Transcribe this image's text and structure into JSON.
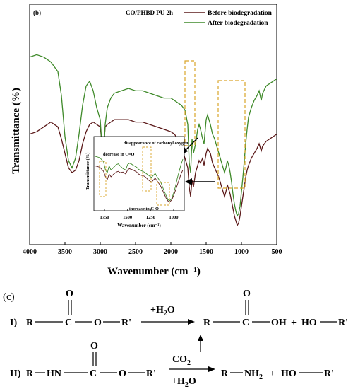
{
  "colors": {
    "before": "#5c1a1a",
    "after": "#3f8a2a",
    "highlight": "#d9a52a",
    "ink": "#000000"
  },
  "chart_data": {
    "type": "line",
    "panel_label": "(b)",
    "title": "CO/PHBD PU 2h",
    "xlabel": "Wavenumber (cm⁻¹)",
    "ylabel": "Transmittance (%)",
    "xlim": [
      4000,
      500
    ],
    "x_reversed": true,
    "x_ticks": [
      "4000",
      "3500",
      "3000",
      "2500",
      "2000",
      "1500",
      "1000",
      "500"
    ],
    "y_ticks_shown": false,
    "legend_placement": "top-right",
    "series": [
      {
        "name": "Before biodegradation",
        "x": [
          4000,
          3900,
          3800,
          3700,
          3600,
          3550,
          3500,
          3450,
          3400,
          3350,
          3300,
          3250,
          3200,
          3150,
          3100,
          3050,
          3000,
          2960,
          2930,
          2900,
          2850,
          2800,
          2700,
          2600,
          2500,
          2400,
          2300,
          2200,
          2100,
          2000,
          1950,
          1900,
          1850,
          1800,
          1760,
          1740,
          1720,
          1700,
          1680,
          1650,
          1620,
          1600,
          1580,
          1550,
          1530,
          1500,
          1480,
          1460,
          1440,
          1410,
          1380,
          1350,
          1320,
          1300,
          1280,
          1260,
          1240,
          1220,
          1200,
          1180,
          1160,
          1140,
          1120,
          1100,
          1080,
          1060,
          1040,
          1020,
          1000,
          980,
          960,
          940,
          920,
          900,
          860,
          820,
          780,
          750,
          720,
          700,
          650,
          600,
          550,
          500
        ],
        "y": [
          46,
          47,
          49,
          51,
          49,
          44,
          38,
          32,
          30,
          31,
          35,
          42,
          47,
          50,
          51,
          50,
          49,
          38,
          49,
          50,
          51,
          52,
          52,
          52,
          51,
          51,
          50,
          49,
          48,
          47,
          46,
          44,
          40,
          36,
          32,
          24,
          20,
          27,
          24,
          30,
          33,
          35,
          34,
          36,
          33,
          38,
          40,
          39,
          38,
          34,
          32,
          30,
          28,
          26,
          24,
          22,
          20,
          22,
          25,
          23,
          21,
          18,
          15,
          12,
          10,
          8,
          9,
          12,
          16,
          20,
          24,
          28,
          31,
          33,
          36,
          38,
          40,
          42,
          39,
          41,
          43,
          44,
          45,
          46
        ]
      },
      {
        "name": "After biodegradation",
        "x": [
          4000,
          3900,
          3800,
          3700,
          3600,
          3550,
          3500,
          3450,
          3400,
          3350,
          3300,
          3250,
          3200,
          3150,
          3100,
          3050,
          3000,
          2960,
          2930,
          2900,
          2850,
          2800,
          2700,
          2600,
          2500,
          2400,
          2300,
          2200,
          2100,
          2000,
          1950,
          1900,
          1850,
          1800,
          1760,
          1740,
          1720,
          1700,
          1680,
          1650,
          1620,
          1600,
          1580,
          1550,
          1530,
          1500,
          1480,
          1460,
          1440,
          1410,
          1380,
          1350,
          1320,
          1300,
          1280,
          1260,
          1240,
          1220,
          1200,
          1180,
          1160,
          1140,
          1120,
          1100,
          1080,
          1060,
          1040,
          1020,
          1000,
          980,
          960,
          940,
          920,
          900,
          860,
          820,
          780,
          750,
          720,
          700,
          650,
          600,
          550,
          500
        ],
        "y": [
          78,
          79,
          78,
          76,
          72,
          62,
          45,
          35,
          32,
          36,
          46,
          58,
          66,
          68,
          64,
          57,
          52,
          34,
          50,
          57,
          61,
          63,
          64,
          65,
          64,
          64,
          63,
          62,
          61,
          61,
          60,
          59,
          58,
          56,
          50,
          34,
          30,
          44,
          38,
          42,
          48,
          50,
          48,
          44,
          42,
          52,
          54,
          52,
          50,
          46,
          44,
          41,
          38,
          36,
          34,
          32,
          30,
          32,
          35,
          33,
          30,
          26,
          21,
          17,
          14,
          12,
          13,
          16,
          22,
          28,
          35,
          42,
          48,
          53,
          57,
          60,
          62,
          64,
          60,
          63,
          66,
          67,
          68,
          69
        ]
      }
    ],
    "inset": {
      "type": "line",
      "xlabel": "Wavenumber (cm⁻¹)",
      "ylabel": "Transmittance (%)",
      "xlim": [
        1850,
        900
      ],
      "x_ticks": [
        "1750",
        "1500",
        "1250",
        "1000"
      ],
      "annotations": [
        "disappearance of carbonyl oxygen",
        "decrease in C=O",
        "increase in C-O"
      ],
      "series": [
        {
          "name": "Before biodegradation",
          "x": [
            1850,
            1800,
            1760,
            1740,
            1720,
            1700,
            1680,
            1650,
            1620,
            1600,
            1580,
            1550,
            1520,
            1500,
            1480,
            1460,
            1440,
            1400,
            1380,
            1350,
            1320,
            1300,
            1280,
            1260,
            1240,
            1220,
            1200,
            1180,
            1160,
            1140,
            1120,
            1100,
            1080,
            1060,
            1040,
            1020,
            1000,
            980,
            960,
            940,
            920,
            900
          ],
          "y": [
            64,
            62,
            56,
            48,
            44,
            52,
            48,
            52,
            55,
            56,
            54,
            55,
            52,
            58,
            60,
            59,
            58,
            55,
            52,
            50,
            49,
            47,
            44,
            42,
            40,
            43,
            46,
            42,
            38,
            34,
            28,
            22,
            16,
            12,
            11,
            14,
            20,
            28,
            36,
            44,
            52,
            58
          ]
        },
        {
          "name": "After biodegradation",
          "x": [
            1850,
            1800,
            1760,
            1740,
            1720,
            1700,
            1680,
            1650,
            1620,
            1600,
            1580,
            1550,
            1520,
            1500,
            1480,
            1460,
            1440,
            1400,
            1380,
            1350,
            1320,
            1300,
            1280,
            1260,
            1240,
            1220,
            1200,
            1180,
            1160,
            1140,
            1120,
            1100,
            1080,
            1060,
            1040,
            1020,
            1000,
            980,
            960,
            940,
            920,
            900
          ],
          "y": [
            78,
            76,
            70,
            58,
            54,
            64,
            58,
            62,
            66,
            67,
            64,
            60,
            58,
            66,
            68,
            67,
            65,
            62,
            59,
            57,
            55,
            53,
            51,
            49,
            47,
            50,
            53,
            48,
            44,
            40,
            33,
            26,
            20,
            14,
            13,
            16,
            24,
            34,
            46,
            56,
            66,
            74
          ]
        }
      ]
    }
  },
  "scheme": {
    "panel_label": "(c)",
    "reaction1": {
      "label": "I)",
      "reactant": [
        "R",
        "C",
        "O",
        "O",
        "R'"
      ],
      "reagent_text": "+H",
      "reagent_sub": "2",
      "reagent_end": "O",
      "product_acid": [
        "R",
        "C",
        "O",
        "OH"
      ],
      "plus": "+",
      "product_alcohol": "HO",
      "product_alcohol_r": "R'"
    },
    "reaction2": {
      "label": "II)",
      "reactant": [
        "R",
        "HN",
        "C",
        "O",
        "O",
        "R'"
      ],
      "reagent_top_text": "CO",
      "reagent_top_sub": "2",
      "reagent_bottom_text": "+H",
      "reagent_bottom_sub": "2",
      "reagent_bottom_end": "O",
      "product_amine": "R",
      "product_amine_nh": "NH",
      "product_amine_sub": "2",
      "plus": "+",
      "product_alcohol": "HO",
      "product_alcohol_r": "R'"
    }
  }
}
